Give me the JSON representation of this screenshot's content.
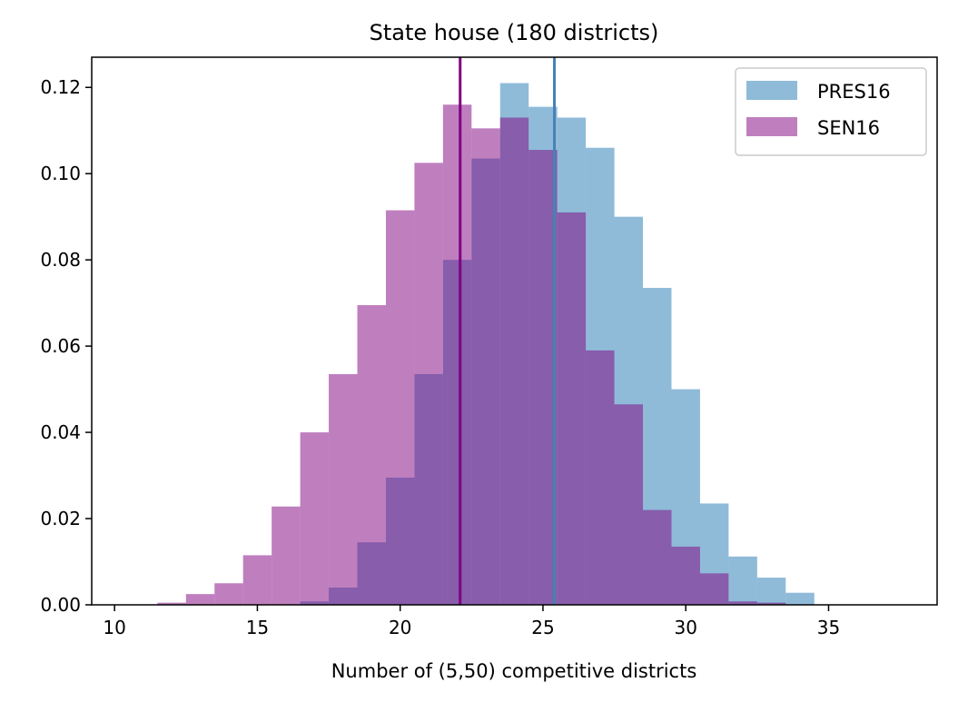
{
  "chart_data": {
    "type": "bar",
    "title": "State house (180 districts)",
    "xlabel": "Number of (5,50) competitive districts",
    "ylabel": "",
    "xlim": [
      9.2,
      38.8
    ],
    "ylim": [
      0,
      0.127
    ],
    "xticks": [
      10,
      15,
      20,
      25,
      30,
      35
    ],
    "yticks": [
      0.0,
      0.02,
      0.04,
      0.06,
      0.08,
      0.1,
      0.12
    ],
    "bin_width": 1,
    "grid": false,
    "legend_position": "top-right",
    "series": [
      {
        "name": "PRES16",
        "color": "#1f77b4",
        "opacity": 0.5,
        "bin_starts": [
          16.5,
          17.5,
          18.5,
          19.5,
          20.5,
          21.5,
          22.5,
          23.5,
          24.5,
          25.5,
          26.5,
          27.5,
          28.5,
          29.5,
          30.5,
          31.5,
          32.5,
          33.5
        ],
        "values": [
          0.0008,
          0.004,
          0.0145,
          0.0295,
          0.0535,
          0.08,
          0.1035,
          0.121,
          0.1155,
          0.113,
          0.106,
          0.09,
          0.0735,
          0.05,
          0.0235,
          0.0112,
          0.0063,
          0.0028
        ]
      },
      {
        "name": "SEN16",
        "color": "#800080",
        "opacity": 0.5,
        "bin_starts": [
          11.5,
          12.5,
          13.5,
          14.5,
          15.5,
          16.5,
          17.5,
          18.5,
          19.5,
          20.5,
          21.5,
          22.5,
          23.5,
          24.5,
          25.5,
          26.5,
          27.5,
          28.5,
          29.5,
          30.5,
          31.5,
          32.5
        ],
        "values": [
          0.0005,
          0.0025,
          0.005,
          0.0115,
          0.0228,
          0.04,
          0.0535,
          0.0695,
          0.0915,
          0.1025,
          0.116,
          0.1105,
          0.113,
          0.1055,
          0.091,
          0.059,
          0.0465,
          0.022,
          0.0135,
          0.0073,
          0.0008,
          0.0005
        ]
      }
    ],
    "vlines": [
      {
        "x": 22.1,
        "color": "#800080"
      },
      {
        "x": 25.4,
        "color": "#4682b4"
      }
    ]
  }
}
